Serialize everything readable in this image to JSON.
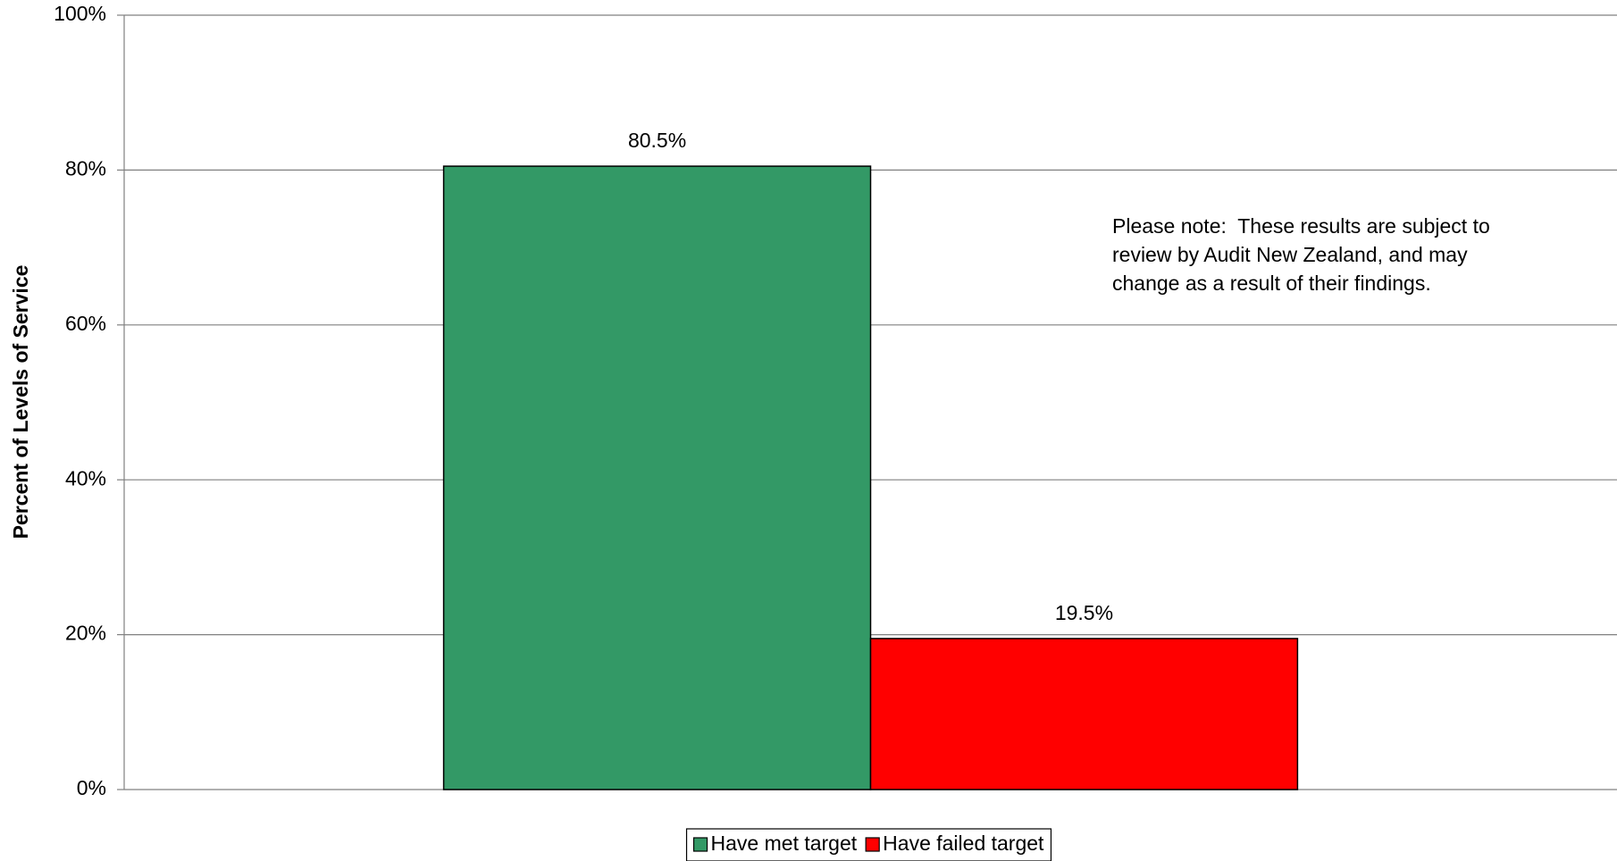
{
  "chart_data": {
    "type": "bar",
    "y_label": "Percent of Levels of Service",
    "annotation": [
      "Please note:  These results are subject to",
      "review by Audit New Zealand, and may",
      "change as a result of their findings."
    ],
    "categories": [
      null
    ],
    "series": [
      {
        "name": "Have met target",
        "color": "#339966",
        "values": [
          80.5
        ],
        "value_labels": [
          "80.5%"
        ]
      },
      {
        "name": "Have failed target",
        "color": "#ff0000",
        "values": [
          19.5
        ],
        "value_labels": [
          "19.5%"
        ]
      }
    ],
    "ylim": [
      0,
      100
    ],
    "yticks": [
      {
        "value": 0,
        "label": "0%"
      },
      {
        "value": 20,
        "label": "20%"
      },
      {
        "value": 40,
        "label": "40%"
      },
      {
        "value": 60,
        "label": "60%"
      },
      {
        "value": 80,
        "label": "80%"
      },
      {
        "value": 100,
        "label": "100%"
      }
    ],
    "grid": true,
    "legend": "bottom"
  }
}
